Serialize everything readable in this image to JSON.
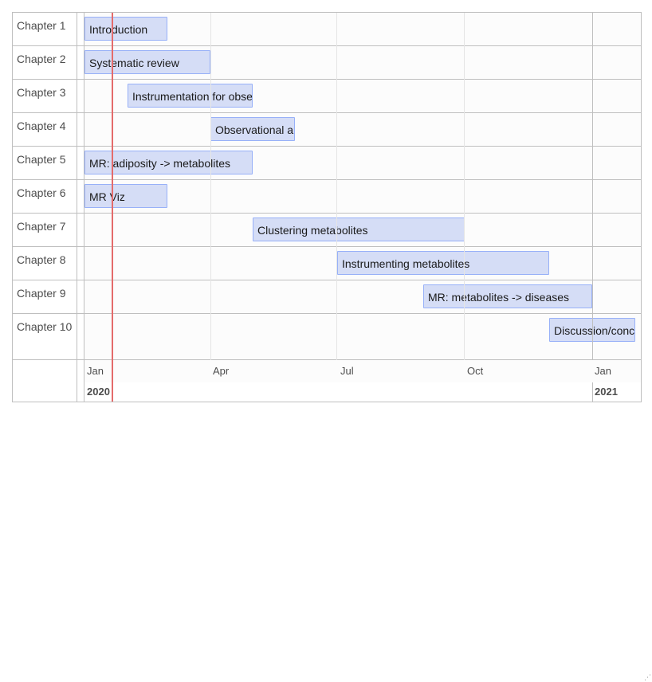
{
  "rows": [
    {
      "label": "Chapter 1",
      "item": "Introduction"
    },
    {
      "label": "Chapter 2",
      "item": "Systematic review"
    },
    {
      "label": "Chapter 3",
      "item": "Instrumentation for observational analysis"
    },
    {
      "label": "Chapter 4",
      "item": "Observational analysis"
    },
    {
      "label": "Chapter 5",
      "item": "MR: adiposity -> metabolites"
    },
    {
      "label": "Chapter 6",
      "item": "MR Viz"
    },
    {
      "label": "Chapter 7",
      "item": "Clustering metabolites"
    },
    {
      "label": "Chapter 8",
      "item": "Instrumenting metabolites"
    },
    {
      "label": "Chapter 9",
      "item": "MR: metabolites -> diseases"
    },
    {
      "label": "Chapter 10",
      "item": "Discussion/conclusion"
    }
  ],
  "axis": {
    "minor": [
      "Jan",
      "Apr",
      "Jul",
      "Oct",
      "Jan"
    ],
    "major": [
      "2020",
      "2021"
    ]
  },
  "colors": {
    "item_fill": "#d5ddf6",
    "item_border": "#97b0f8",
    "current_time": "#e46b6b",
    "grid": "#bfbfbf"
  }
}
